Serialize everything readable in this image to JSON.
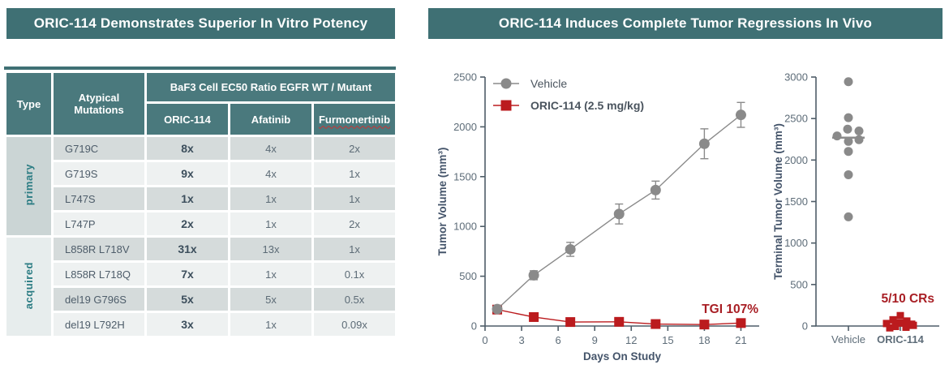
{
  "left_panel": {
    "title": "ORIC-114 Demonstrates Superior In Vitro Potency",
    "table": {
      "header": {
        "type": "Type",
        "mutations": "Atypical Mutations",
        "group": "BaF3 Cell EC50 Ratio EGFR WT / Mutant",
        "drugs": [
          "ORIC-114",
          "Afatinib",
          "Furmonertinib"
        ]
      },
      "groups": [
        {
          "label": "primary",
          "rows": [
            {
              "mutation": "G719C",
              "values": [
                "8x",
                "4x",
                "2x"
              ]
            },
            {
              "mutation": "G719S",
              "values": [
                "9x",
                "4x",
                "1x"
              ]
            },
            {
              "mutation": "L747S",
              "values": [
                "1x",
                "1x",
                "1x"
              ]
            },
            {
              "mutation": "L747P",
              "values": [
                "2x",
                "1x",
                "2x"
              ]
            }
          ]
        },
        {
          "label": "acquired",
          "rows": [
            {
              "mutation": "L858R L718V",
              "values": [
                "31x",
                "13x",
                "1x"
              ]
            },
            {
              "mutation": "L858R L718Q",
              "values": [
                "7x",
                "1x",
                "0.1x"
              ]
            },
            {
              "mutation": "del19 G796S",
              "values": [
                "5x",
                "5x",
                "0.5x"
              ]
            },
            {
              "mutation": "del19 L792H",
              "values": [
                "3x",
                "1x",
                "0.09x"
              ]
            }
          ]
        }
      ]
    }
  },
  "right_panel": {
    "title": "ORIC-114 Induces Complete Tumor Regressions In Vivo"
  },
  "colors": {
    "teal": "#3f7074",
    "red": "#bb1b1e",
    "red_dark": "#a81e24",
    "gray": "#8a8a8a",
    "axis": "#4f5d68",
    "tick_text": "#5d6c78",
    "axis_title": "#44546a"
  },
  "chart_data": [
    {
      "type": "line",
      "title": "",
      "xlabel": "Days On Study",
      "ylabel": "Tumor Volume (mm³)",
      "xlim": [
        0,
        22.5
      ],
      "ylim": [
        0,
        2500
      ],
      "xticks": [
        0,
        3,
        6,
        9,
        12,
        15,
        18,
        21
      ],
      "yticks": [
        0,
        500,
        1000,
        1500,
        2000,
        2500
      ],
      "x": [
        1,
        4,
        7,
        11,
        14,
        18,
        21
      ],
      "series": [
        {
          "name": "Vehicle",
          "marker": "circle",
          "color": "#8a8a8a",
          "legend_bold": false,
          "values": [
            170,
            510,
            770,
            1125,
            1365,
            1830,
            2120
          ],
          "errors": [
            25,
            45,
            70,
            100,
            90,
            150,
            125
          ]
        },
        {
          "name": "ORIC-114 (2.5 mg/kg)",
          "marker": "square",
          "color": "#bb1b1e",
          "legend_bold": true,
          "values": [
            165,
            90,
            40,
            42,
            20,
            15,
            30
          ],
          "errors": [
            30,
            30,
            18,
            18,
            14,
            14,
            16
          ]
        }
      ],
      "legend_position": "upper-left",
      "grid": false,
      "annotation": {
        "text": "TGI 107%"
      }
    },
    {
      "type": "scatter",
      "title": "",
      "xlabel": "",
      "ylabel": "Terminal Tumor Volume (mm³)",
      "ylim": [
        0,
        3000
      ],
      "yticks": [
        0,
        500,
        1000,
        1500,
        2000,
        2500,
        3000
      ],
      "categories": [
        "Vehicle",
        "ORIC-114"
      ],
      "groups": [
        {
          "name": "Vehicle",
          "marker": "circle",
          "color": "#8a8a8a",
          "median": 2270,
          "points": [
            [
              0,
              2944
            ],
            [
              0,
              2510
            ],
            [
              -1,
              2372
            ],
            [
              13,
              2350
            ],
            [
              -14,
              2290
            ],
            [
              13,
              2245
            ],
            [
              0,
              2225
            ],
            [
              0,
              2104
            ],
            [
              0,
              1823
            ],
            [
              0,
              1316
            ]
          ]
        },
        {
          "name": "ORIC-114",
          "marker": "square",
          "color": "#bb1b1e",
          "points": [
            [
              0,
              125
            ],
            [
              -9,
              75
            ],
            [
              8,
              60
            ],
            [
              -17,
              30
            ],
            [
              0,
              35
            ],
            [
              14,
              22
            ],
            [
              -6,
              -5
            ],
            [
              7,
              -15
            ],
            [
              16,
              8
            ],
            [
              -13,
              -22
            ]
          ]
        }
      ],
      "grid": false,
      "annotation": {
        "text": "5/10 CRs"
      }
    }
  ]
}
